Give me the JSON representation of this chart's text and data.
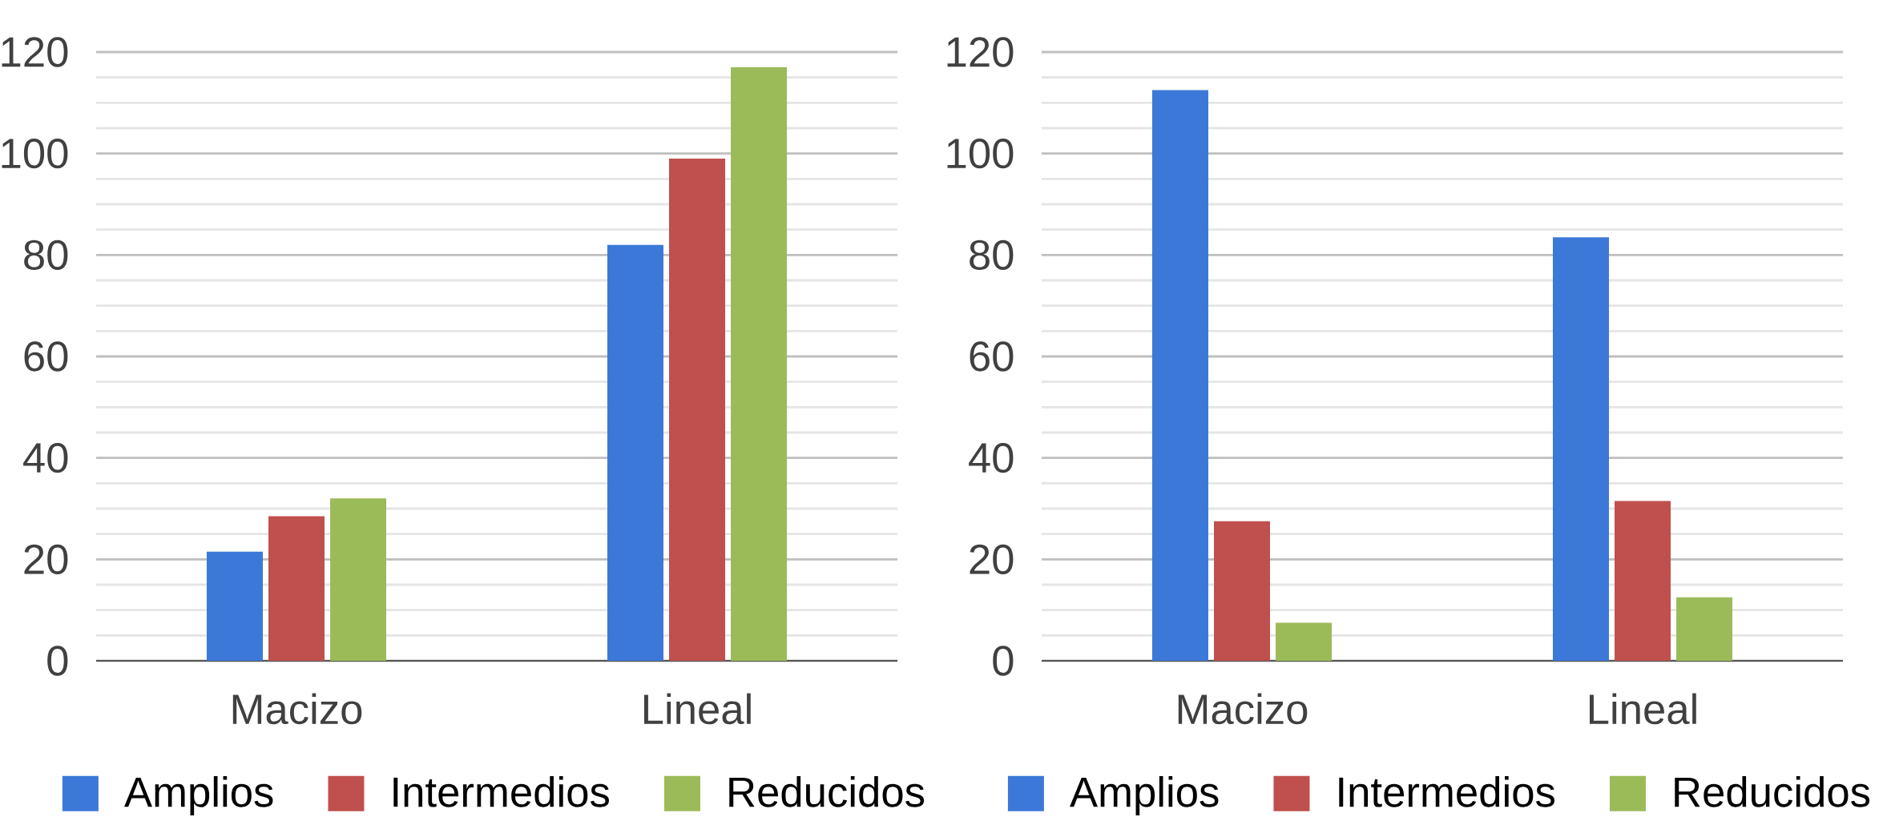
{
  "chart_data": [
    {
      "type": "bar",
      "categories": [
        "Macizo",
        "Lineal"
      ],
      "series": [
        {
          "name": "Amplios",
          "color": "#3c78d8",
          "values": [
            21.5,
            82
          ]
        },
        {
          "name": "Intermedios",
          "color": "#c0504d",
          "values": [
            28.5,
            99
          ]
        },
        {
          "name": "Reducidos",
          "color": "#9bbb59",
          "values": [
            32,
            117
          ]
        }
      ],
      "ylim": [
        0,
        120
      ],
      "yticks": [
        0,
        20,
        40,
        60,
        80,
        100,
        120
      ],
      "grid": "y",
      "legend": "bottom"
    },
    {
      "type": "bar",
      "categories": [
        "Macizo",
        "Lineal"
      ],
      "series": [
        {
          "name": "Amplios",
          "color": "#3c78d8",
          "values": [
            112.5,
            83.5
          ]
        },
        {
          "name": "Intermedios",
          "color": "#c0504d",
          "values": [
            27.5,
            31.5
          ]
        },
        {
          "name": "Reducidos",
          "color": "#9bbb59",
          "values": [
            7.5,
            12.5
          ]
        }
      ],
      "ylim": [
        0,
        120
      ],
      "yticks": [
        0,
        20,
        40,
        60,
        80,
        100,
        120
      ],
      "grid": "y",
      "legend": "bottom"
    }
  ]
}
